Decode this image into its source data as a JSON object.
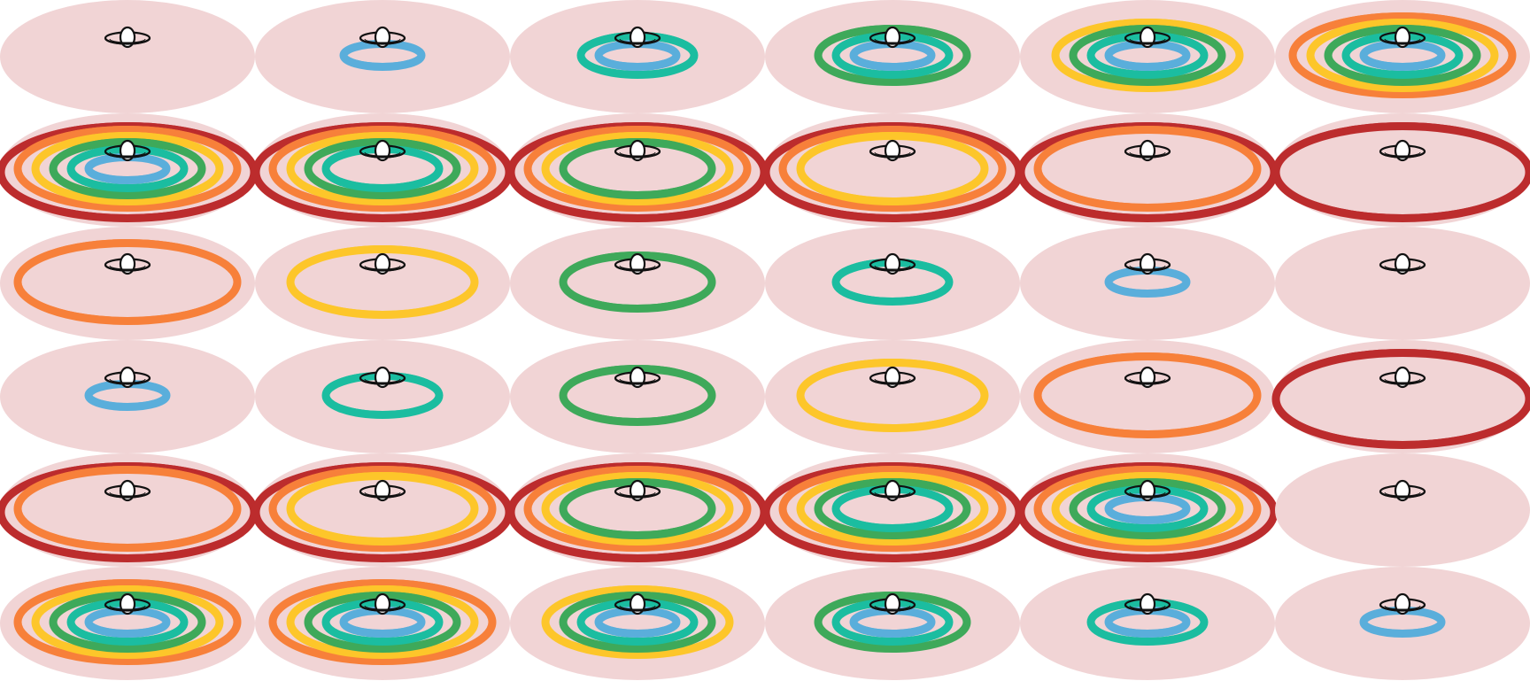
{
  "sheet": {
    "grid": {
      "rows": 6,
      "columns": 6
    },
    "frame_count": 36,
    "background_color": "#ffffff"
  },
  "colors": {
    "disk": "#f1d4d5",
    "rings": {
      "blue": "#5aaedb",
      "teal": "#1bbda0",
      "green": "#3ea95a",
      "yellow": "#fdc62a",
      "orange": "#f7803a",
      "red": "#bc2c2d"
    },
    "core_outline": "#111111",
    "core_fill": "#ffffff"
  },
  "icons": {
    "core": "saturn-planet-icon",
    "disk": "disk-ellipse"
  },
  "ring_order": [
    "blue",
    "teal",
    "green",
    "yellow",
    "orange",
    "red"
  ],
  "frames": [
    {
      "index": 0,
      "rings": []
    },
    {
      "index": 1,
      "rings": [
        "blue"
      ]
    },
    {
      "index": 2,
      "rings": [
        "blue",
        "teal"
      ]
    },
    {
      "index": 3,
      "rings": [
        "blue",
        "teal",
        "green"
      ]
    },
    {
      "index": 4,
      "rings": [
        "blue",
        "teal",
        "green",
        "yellow"
      ]
    },
    {
      "index": 5,
      "rings": [
        "blue",
        "teal",
        "green",
        "yellow",
        "orange"
      ]
    },
    {
      "index": 6,
      "rings": [
        "blue",
        "teal",
        "green",
        "yellow",
        "orange",
        "red"
      ]
    },
    {
      "index": 7,
      "rings": [
        "teal",
        "green",
        "yellow",
        "orange",
        "red"
      ]
    },
    {
      "index": 8,
      "rings": [
        "green",
        "yellow",
        "orange",
        "red"
      ]
    },
    {
      "index": 9,
      "rings": [
        "yellow",
        "orange",
        "red"
      ]
    },
    {
      "index": 10,
      "rings": [
        "orange",
        "red"
      ]
    },
    {
      "index": 11,
      "rings": [
        "red"
      ]
    },
    {
      "index": 12,
      "rings": [
        "orange"
      ]
    },
    {
      "index": 13,
      "rings": [
        "yellow"
      ]
    },
    {
      "index": 14,
      "rings": [
        "green"
      ]
    },
    {
      "index": 15,
      "rings": [
        "teal"
      ]
    },
    {
      "index": 16,
      "rings": [
        "blue"
      ]
    },
    {
      "index": 17,
      "rings": []
    },
    {
      "index": 18,
      "rings": [
        "blue"
      ]
    },
    {
      "index": 19,
      "rings": [
        "teal"
      ]
    },
    {
      "index": 20,
      "rings": [
        "green"
      ]
    },
    {
      "index": 21,
      "rings": [
        "yellow"
      ]
    },
    {
      "index": 22,
      "rings": [
        "orange"
      ]
    },
    {
      "index": 23,
      "rings": [
        "red"
      ]
    },
    {
      "index": 24,
      "rings": [
        "orange",
        "red"
      ]
    },
    {
      "index": 25,
      "rings": [
        "yellow",
        "orange",
        "red"
      ]
    },
    {
      "index": 26,
      "rings": [
        "green",
        "yellow",
        "orange",
        "red"
      ]
    },
    {
      "index": 27,
      "rings": [
        "teal",
        "green",
        "yellow",
        "orange",
        "red"
      ]
    },
    {
      "index": 28,
      "rings": [
        "blue",
        "teal",
        "green",
        "yellow",
        "orange",
        "red"
      ]
    },
    {
      "index": 29,
      "rings": []
    },
    {
      "index": 30,
      "rings": [
        "blue",
        "teal",
        "green",
        "yellow",
        "orange"
      ]
    },
    {
      "index": 31,
      "rings": [
        "blue",
        "teal",
        "green",
        "yellow",
        "orange"
      ]
    },
    {
      "index": 32,
      "rings": [
        "blue",
        "teal",
        "green",
        "yellow"
      ]
    },
    {
      "index": 33,
      "rings": [
        "blue",
        "teal",
        "green"
      ]
    },
    {
      "index": 34,
      "rings": [
        "blue",
        "teal"
      ]
    },
    {
      "index": 35,
      "rings": [
        "blue"
      ]
    }
  ]
}
